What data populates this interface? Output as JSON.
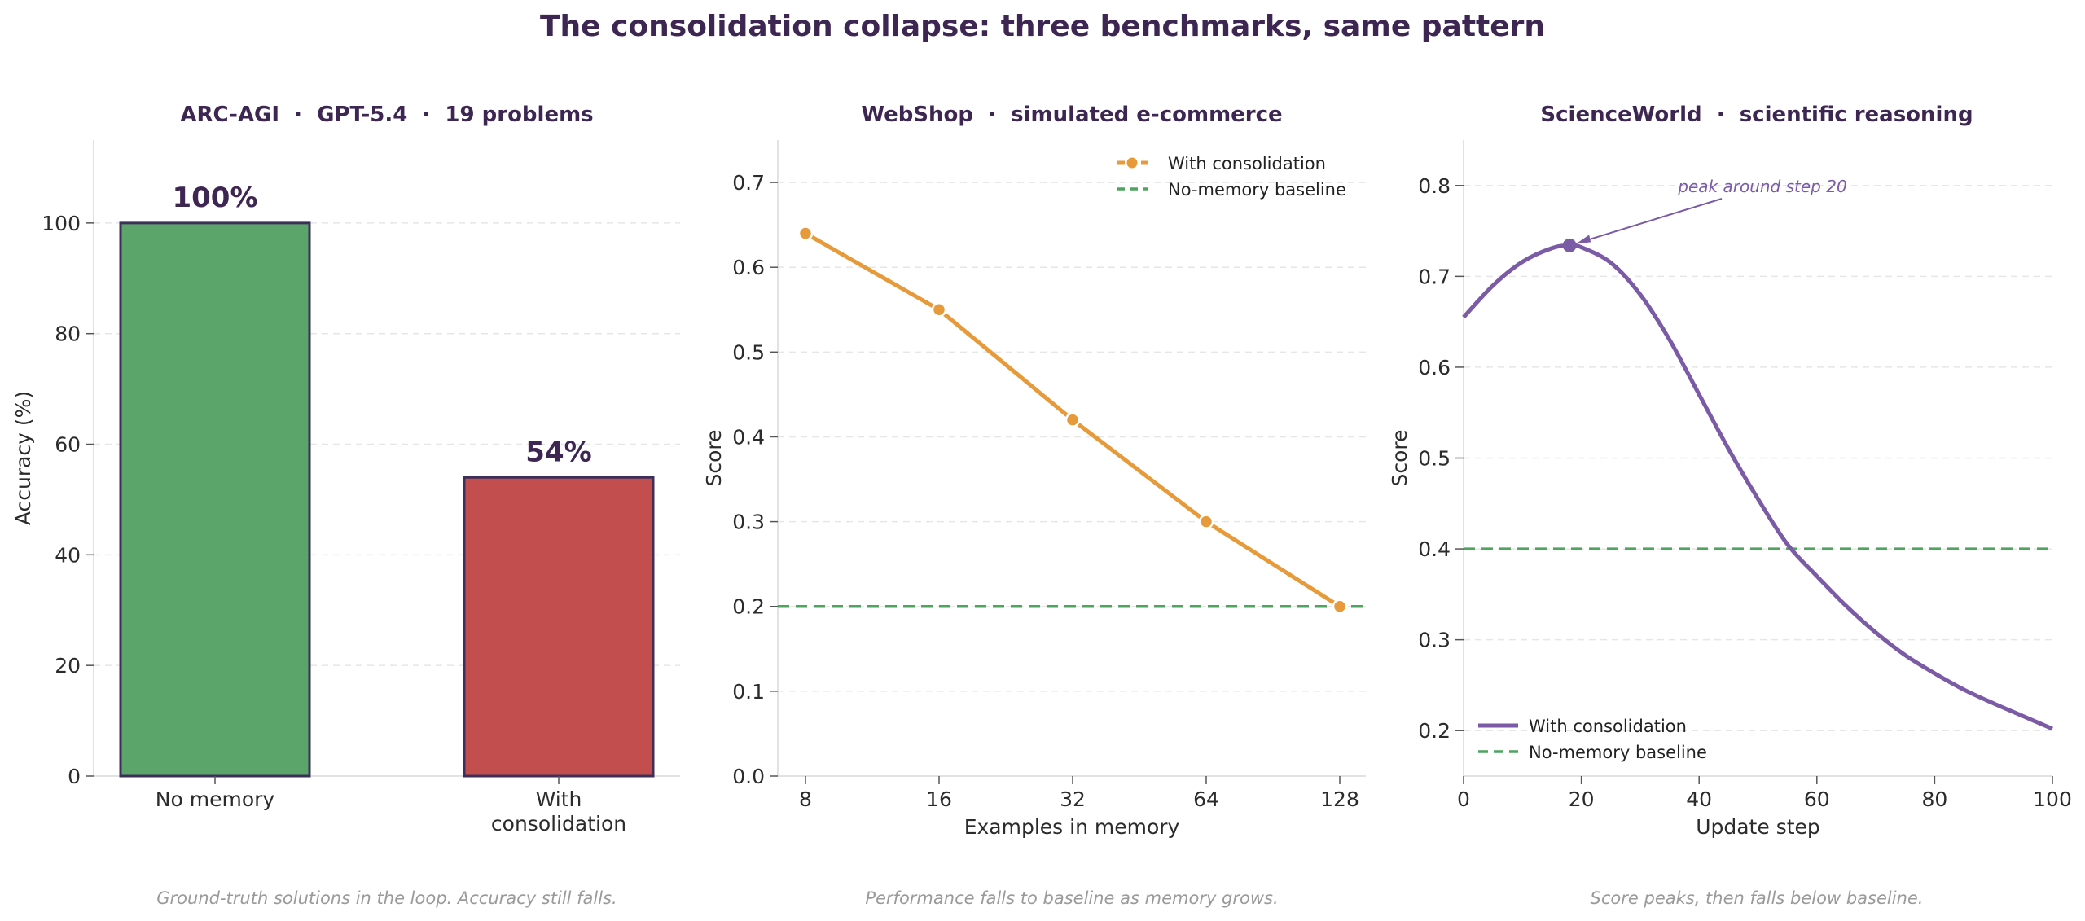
{
  "figure": {
    "title": "The consolidation collapse: three benchmarks, same pattern",
    "captions": [
      "Ground-truth solutions in the loop. Accuracy still falls.",
      "Performance falls to baseline as memory grows.",
      "Score peaks, then falls below baseline."
    ]
  },
  "chart_data": [
    {
      "type": "bar",
      "title": "ARC-AGI  ·  GPT-5.4  ·  19 problems",
      "categories": [
        "No memory",
        "With\nconsolidation"
      ],
      "values": [
        100,
        54
      ],
      "value_labels": [
        "100%",
        "54%"
      ],
      "bar_colors": [
        "#5ba56a",
        "#c24f4e"
      ],
      "edge_color": "#3d2f5a",
      "ylabel": "Accuracy (%)",
      "xlabel": "",
      "ylim": [
        0,
        115
      ],
      "yticks": [
        0,
        20,
        40,
        60,
        80,
        100
      ],
      "grid": true
    },
    {
      "type": "line",
      "title": "WebShop  ·  simulated e-commerce",
      "x": [
        8,
        16,
        32,
        64,
        128
      ],
      "x_scale": "log2",
      "xticks": [
        "8",
        "16",
        "32",
        "64",
        "128"
      ],
      "series": [
        {
          "name": "With consolidation",
          "values": [
            0.64,
            0.55,
            0.42,
            0.3,
            0.2
          ],
          "color": "#e69a3a",
          "markers": true
        }
      ],
      "baseline": {
        "name": "No-memory baseline",
        "value": 0.2,
        "color": "#4fa45f",
        "style": "dashed"
      },
      "xlabel": "Examples in memory",
      "ylabel": "Score",
      "ylim": [
        0,
        0.75
      ],
      "yticks": [
        0.0,
        0.1,
        0.2,
        0.3,
        0.4,
        0.5,
        0.6,
        0.7
      ],
      "legend": "top-right",
      "grid": true
    },
    {
      "type": "line",
      "title": "ScienceWorld  ·  scientific reasoning",
      "x": [
        0,
        5,
        10,
        15,
        18,
        20,
        25,
        30,
        35,
        40,
        45,
        50,
        55,
        60,
        65,
        70,
        75,
        80,
        85,
        90,
        95,
        100
      ],
      "series": [
        {
          "name": "With consolidation",
          "values": [
            0.655,
            0.69,
            0.716,
            0.731,
            0.734,
            0.732,
            0.715,
            0.68,
            0.63,
            0.57,
            0.51,
            0.455,
            0.405,
            0.37,
            0.337,
            0.308,
            0.283,
            0.263,
            0.245,
            0.23,
            0.216,
            0.202
          ],
          "color": "#7b5aa6"
        }
      ],
      "peak": {
        "x": 18,
        "y": 0.734,
        "annotation": "peak around step 20"
      },
      "baseline": {
        "name": "No-memory baseline",
        "value": 0.4,
        "color": "#4fa45f",
        "style": "dashed"
      },
      "xlabel": "Update step",
      "ylabel": "Score",
      "xlim": [
        0,
        100
      ],
      "xticks": [
        0,
        20,
        40,
        60,
        80,
        100
      ],
      "ylim": [
        0.15,
        0.85
      ],
      "yticks": [
        0.2,
        0.3,
        0.4,
        0.5,
        0.6,
        0.7,
        0.8
      ],
      "legend": "bottom-left",
      "grid": true
    }
  ]
}
